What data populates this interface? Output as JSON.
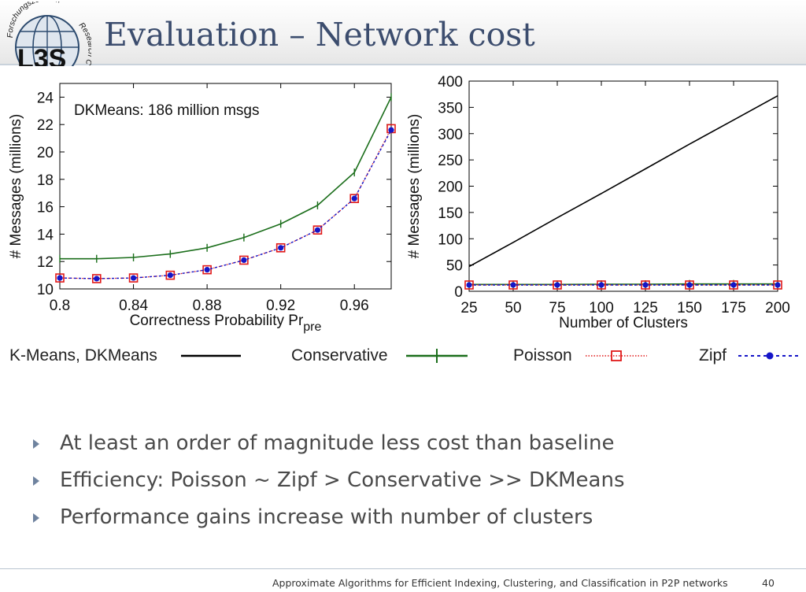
{
  "slide": {
    "title": "Evaluation – Network cost",
    "logo_text_top": "Forschungszentrum",
    "logo_text_right": "Research C",
    "logo_letters": "L3S"
  },
  "colors": {
    "title": "#3c4d6e",
    "kmeans": "#000000",
    "conservative": "#1b6e1b",
    "poisson": "#e01818",
    "zipf": "#1515c8",
    "bullet_arrow": "#6f839f"
  },
  "chart_data": [
    {
      "type": "line",
      "annotation": "DKMeans: 186 million msgs",
      "xlabel": "Correctness Probability Pr",
      "xlabel_sub": "pre",
      "ylabel": "# Messages (millions)",
      "xlim": [
        0.8,
        0.98
      ],
      "ylim": [
        10,
        25
      ],
      "xticks": [
        0.8,
        0.84,
        0.88,
        0.92,
        0.96
      ],
      "xtick_labels": [
        "0.8",
        "0.84",
        "0.88",
        "0.92",
        "0.96"
      ],
      "yticks": [
        10,
        12,
        14,
        16,
        18,
        20,
        22,
        24
      ],
      "ytick_labels": [
        "10",
        "12",
        "14",
        "16",
        "18",
        "20",
        "22",
        "24"
      ],
      "x": [
        0.8,
        0.82,
        0.84,
        0.86,
        0.88,
        0.9,
        0.92,
        0.94,
        0.96,
        0.98
      ],
      "series": [
        {
          "name": "Conservative",
          "values": [
            12.2,
            12.2,
            12.3,
            12.55,
            13.0,
            13.75,
            14.75,
            16.1,
            18.5,
            24.0
          ]
        },
        {
          "name": "Poisson",
          "values": [
            10.8,
            10.75,
            10.8,
            11.0,
            11.4,
            12.1,
            13.0,
            14.3,
            16.6,
            21.7
          ]
        },
        {
          "name": "Zipf",
          "values": [
            10.8,
            10.75,
            10.8,
            11.0,
            11.4,
            12.1,
            13.0,
            14.3,
            16.6,
            21.6
          ]
        }
      ],
      "grid": false,
      "legend": "bottom"
    },
    {
      "type": "line",
      "xlabel": "Number of Clusters",
      "ylabel": "# Messages (millions)",
      "xlim": [
        25,
        200
      ],
      "ylim": [
        0,
        400
      ],
      "xticks": [
        25,
        50,
        75,
        100,
        125,
        150,
        175,
        200
      ],
      "xtick_labels": [
        "25",
        "50",
        "75",
        "100",
        "125",
        "150",
        "175",
        "200"
      ],
      "yticks": [
        0,
        50,
        100,
        150,
        200,
        250,
        300,
        350,
        400
      ],
      "ytick_labels": [
        "0",
        "50",
        "100",
        "150",
        "200",
        "250",
        "300",
        "350",
        "400"
      ],
      "x": [
        25,
        50,
        75,
        100,
        125,
        150,
        175,
        200
      ],
      "series": [
        {
          "name": "K-Means, DKMeans",
          "values": [
            47,
            93,
            140,
            186,
            233,
            280,
            326,
            372
          ]
        },
        {
          "name": "Conservative",
          "values": [
            13,
            13,
            13,
            13.5,
            13.5,
            14,
            14,
            14
          ]
        },
        {
          "name": "Poisson",
          "values": [
            12,
            12,
            12,
            12,
            12,
            12,
            12,
            12
          ]
        },
        {
          "name": "Zipf",
          "values": [
            12,
            12,
            12,
            12,
            12,
            12,
            12,
            12
          ]
        }
      ],
      "grid": false,
      "legend": "bottom"
    }
  ],
  "legend": {
    "items": [
      "K-Means, DKMeans",
      "Conservative",
      "Poisson",
      "Zipf"
    ]
  },
  "bullets": [
    "At least an order of magnitude less cost than baseline",
    "Efficiency: Poisson ~ Zipf  > Conservative >> DKMeans",
    "Performance gains increase with number of clusters"
  ],
  "footer": {
    "text": "Approximate Algorithms for Efficient Indexing, Clustering, and Classification in P2P networks",
    "page": "40"
  }
}
